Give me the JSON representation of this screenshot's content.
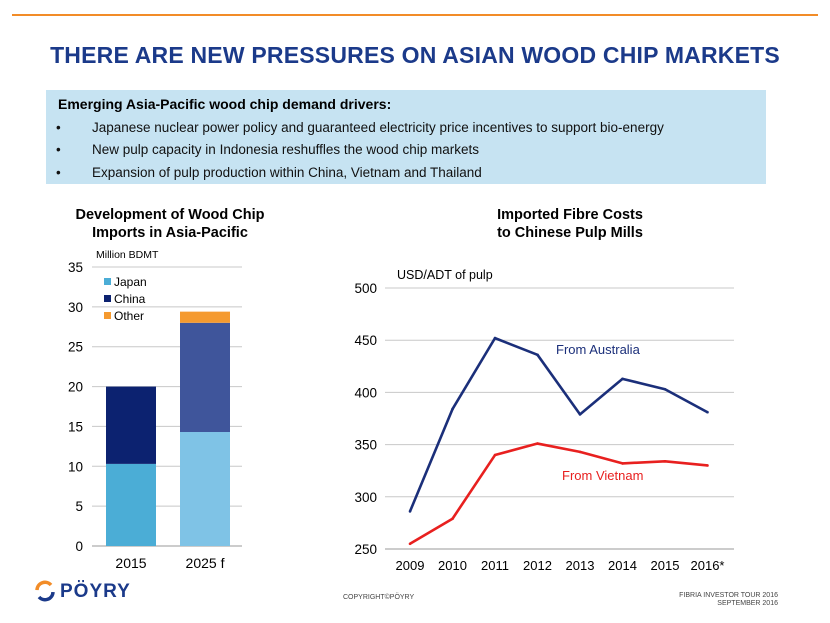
{
  "title": "THERE ARE NEW PRESSURES ON ASIAN WOOD CHIP MARKETS",
  "drivers": {
    "heading": "Emerging Asia-Pacific wood chip demand drivers:",
    "items": [
      "Japanese nuclear power policy and guaranteed electricity price incentives to support bio-energy",
      "New pulp capacity in Indonesia reshuffles the wood chip markets",
      "Expansion of pulp production within China, Vietnam and Thailand"
    ]
  },
  "chart_data": [
    {
      "type": "bar",
      "stacked": true,
      "title": "Development of Wood Chip Imports in Asia-Pacific",
      "title_lines": [
        "Development of Wood Chip",
        "Imports in Asia-Pacific"
      ],
      "ylabel": "Million BDMT",
      "xlabel": "",
      "ylim": [
        0,
        35
      ],
      "yticks": [
        0,
        5,
        10,
        15,
        20,
        25,
        30,
        35
      ],
      "categories": [
        "2015",
        "2025 f"
      ],
      "series": [
        {
          "name": "Japan",
          "values": [
            10.3,
            14.3
          ],
          "colors": [
            "#4badd6",
            "#7fc3e6"
          ]
        },
        {
          "name": "China",
          "values": [
            9.7,
            13.7
          ],
          "colors": [
            "#0c2270",
            "#3f559b"
          ]
        },
        {
          "name": "Other",
          "values": [
            0,
            1.4
          ],
          "colors": [
            "#f59a2f",
            "#f59a2f"
          ]
        }
      ],
      "legend_colors": [
        "#4badd6",
        "#0c2270",
        "#f59a2f"
      ],
      "legend": "top-left",
      "grid": true
    },
    {
      "type": "line",
      "title": "Imported Fibre Costs to Chinese Pulp Mills",
      "title_lines": [
        "Imported Fibre Costs",
        "to Chinese Pulp Mills"
      ],
      "ylabel": "USD/ADT of pulp",
      "xlabel": "",
      "ylim": [
        250,
        500
      ],
      "yticks": [
        250,
        300,
        350,
        400,
        450,
        500
      ],
      "categories": [
        "2009",
        "2010",
        "2011",
        "2012",
        "2013",
        "2014",
        "2015",
        "2016*"
      ],
      "series": [
        {
          "name": "From Australia",
          "values": [
            286,
            384,
            452,
            436,
            379,
            413,
            403,
            381
          ],
          "color": "#1b2f7a"
        },
        {
          "name": "From Vietnam",
          "values": [
            255,
            279,
            340,
            351,
            343,
            332,
            334,
            330
          ],
          "color": "#e8201f"
        }
      ],
      "grid": true
    }
  ],
  "footer": {
    "brand": "PÖYRY",
    "copyright": "COPYRIGHT©PÖYRY",
    "event_line1": "FIBRIA INVESTOR TOUR 2016",
    "event_line2": "SEPTEMBER 2016"
  }
}
